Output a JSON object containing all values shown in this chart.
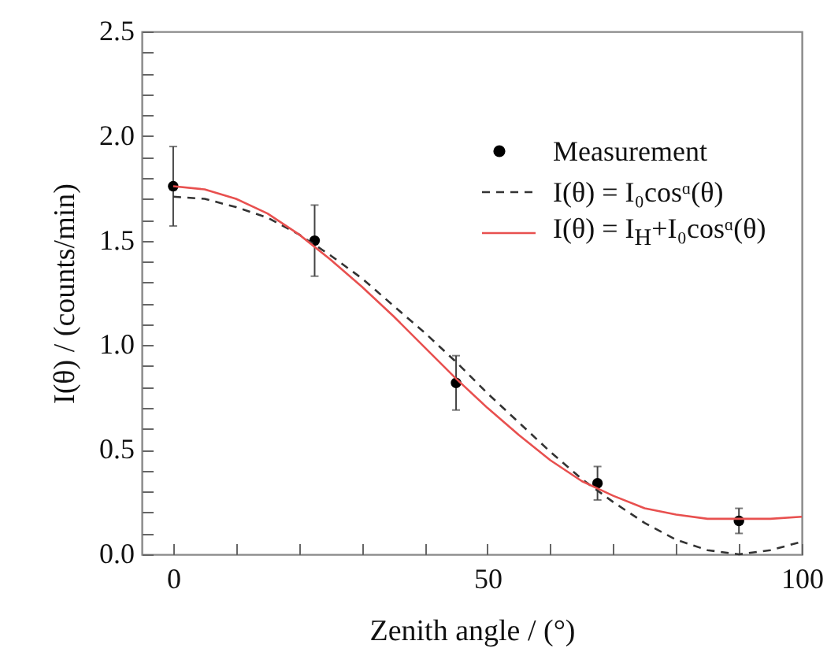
{
  "chart_data": {
    "type": "scatter",
    "xlabel": "Zenith angle / (°)",
    "ylabel": "I(θ) / (counts/min)",
    "xlim": [
      -5,
      100
    ],
    "ylim": [
      0,
      2.5
    ],
    "xticks": [
      0,
      {
        "value": 10,
        "label": null
      },
      {
        "value": 20,
        "label": null
      },
      {
        "value": 30,
        "label": null
      },
      {
        "value": 40,
        "label": null
      },
      50,
      {
        "value": 60,
        "label": null
      },
      {
        "value": 70,
        "label": null
      },
      {
        "value": 80,
        "label": null
      },
      {
        "value": 90,
        "label": null
      },
      100
    ],
    "yticks": [
      {
        "value": 0,
        "label": "0.0"
      },
      {
        "value": 0.1,
        "label": null
      },
      {
        "value": 0.2,
        "label": null
      },
      {
        "value": 0.3,
        "label": null
      },
      {
        "value": 0.4,
        "label": null
      },
      0.5,
      {
        "value": 0.6,
        "label": null
      },
      {
        "value": 0.7,
        "label": null
      },
      {
        "value": 0.8,
        "label": null
      },
      {
        "value": 0.9,
        "label": null
      },
      {
        "value": 1,
        "label": "1.0"
      },
      {
        "value": 1.1,
        "label": null
      },
      {
        "value": 1.2,
        "label": null
      },
      {
        "value": 1.3,
        "label": null
      },
      {
        "value": 1.4,
        "label": null
      },
      1.5,
      {
        "value": 1.6,
        "label": null
      },
      {
        "value": 1.7,
        "label": null
      },
      {
        "value": 1.8,
        "label": null
      },
      {
        "value": 1.9,
        "label": null
      },
      {
        "value": 2,
        "label": "2.0"
      },
      {
        "value": 2.1,
        "label": null
      },
      {
        "value": 2.2,
        "label": null
      },
      {
        "value": 2.3,
        "label": null
      },
      {
        "value": 2.4,
        "label": null
      },
      2.5
    ],
    "legend": "top right",
    "grid": false,
    "series": [
      {
        "name": "Measurement",
        "type": "scatter",
        "marker": "circle",
        "color": "#000000",
        "x": [
          0,
          22.5,
          45,
          67.5,
          90
        ],
        "values": [
          1.76,
          1.5,
          0.82,
          0.34,
          0.16
        ],
        "errors": [
          [
            1.57,
            1.95
          ],
          [
            1.33,
            1.67
          ],
          [
            0.69,
            0.95
          ],
          [
            0.26,
            0.42
          ],
          [
            0.1,
            0.22
          ]
        ]
      },
      {
        "name": "I(θ) = I₀cosᵅ(θ)",
        "type": "line",
        "line_style": "dashed",
        "color": "#333333",
        "x": [
          0,
          5,
          10,
          15,
          20,
          25,
          30,
          35,
          40,
          45,
          50,
          55,
          60,
          65,
          70,
          75,
          80,
          85,
          90,
          95,
          100
        ],
        "values": [
          1.71,
          1.7,
          1.66,
          1.61,
          1.53,
          1.43,
          1.32,
          1.19,
          1.06,
          0.92,
          0.77,
          0.63,
          0.49,
          0.36,
          0.25,
          0.15,
          0.07,
          0.02,
          0,
          0.02,
          0.06
        ]
      },
      {
        "name": "I(θ) = I$_{H}$+I₀cosᵅ(θ)",
        "type": "line",
        "line_style": "solid",
        "color": "#e8504f",
        "x": [
          0,
          5,
          10,
          15,
          20,
          25,
          30,
          35,
          40,
          45,
          50,
          55,
          60,
          65,
          70,
          75,
          80,
          85,
          90,
          95,
          100
        ],
        "values": [
          1.76,
          1.745,
          1.7,
          1.63,
          1.53,
          1.41,
          1.28,
          1.14,
          0.99,
          0.84,
          0.7,
          0.57,
          0.45,
          0.35,
          0.28,
          0.22,
          0.19,
          0.17,
          0.17,
          0.17,
          0.18
        ]
      }
    ]
  }
}
